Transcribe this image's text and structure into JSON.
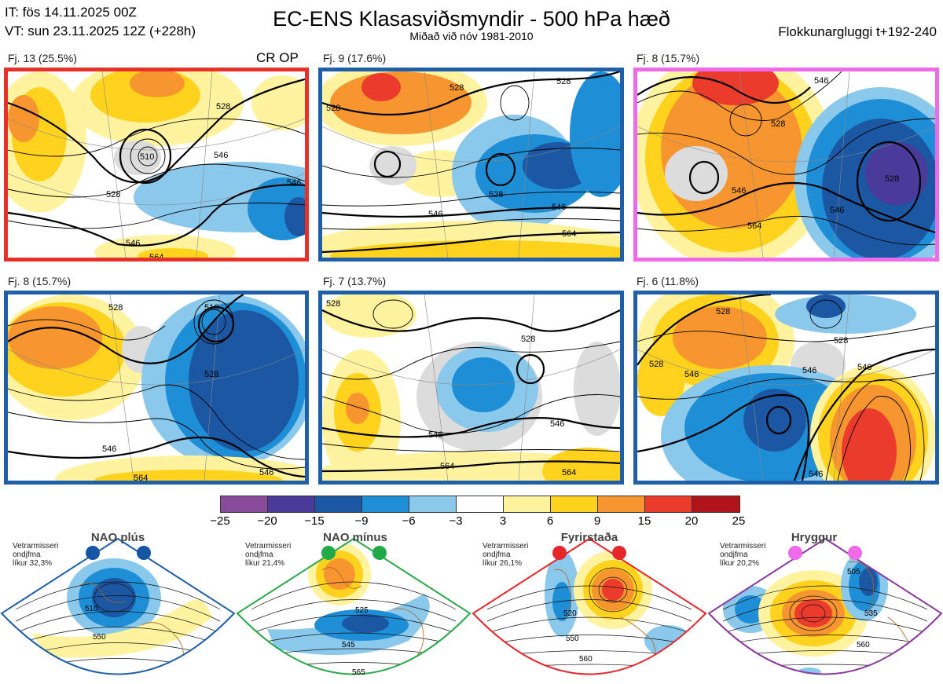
{
  "header": {
    "it_line": "IT: fös 14.11.2025 00Z",
    "vt_line": "VT: sun 23.11.2025 12Z  (+228h)",
    "title": "EC-ENS Klasasviðsmyndir - 500 hPa hæð",
    "subtitle": "Miðað við nóv 1981-2010",
    "window": "Flokkunargluggi t+192-240"
  },
  "panels": [
    {
      "label": "Fj. 13 (25.5%)",
      "tag": "CR OP",
      "border_color": "#e8302a",
      "contours": [
        "510",
        "528",
        "546",
        "528",
        "546",
        "546",
        "564"
      ]
    },
    {
      "label": "Fj. 9 (17.6%)",
      "tag": "",
      "border_color": "#1f5fa8",
      "contours": [
        "528",
        "528",
        "528",
        "528",
        "546",
        "546",
        "564"
      ]
    },
    {
      "label": "Fj. 8 (15.7%)",
      "tag": "",
      "border_color": "#ee6ae8",
      "contours": [
        "528",
        "546",
        "564",
        "528",
        "546",
        "546"
      ]
    },
    {
      "label": "Fj. 8 (15.7%)",
      "tag": "",
      "border_color": "#1f5fa8",
      "contours": [
        "510",
        "528",
        "546",
        "528",
        "564",
        "546"
      ]
    },
    {
      "label": "Fj. 7 (13.7%)",
      "tag": "",
      "border_color": "#1f5fa8",
      "contours": [
        "528",
        "528",
        "546",
        "546",
        "564",
        "564"
      ]
    },
    {
      "label": "Fj. 6 (11.8%)",
      "tag": "",
      "border_color": "#1f5fa8",
      "contours": [
        "528",
        "528",
        "546",
        "546",
        "528",
        "546",
        "546"
      ]
    }
  ],
  "colorbar": {
    "colors": [
      "#8a4a9c",
      "#4a3a9a",
      "#1b57a3",
      "#1e8fd6",
      "#8ac8ec",
      "#ffffff",
      "#fff3a0",
      "#ffd21e",
      "#f7962e",
      "#ea3b2c",
      "#b1131a"
    ],
    "ticks": [
      "−25",
      "−20",
      "−15",
      "−9",
      "−6",
      "−3",
      "3",
      "6",
      "9",
      "15",
      "20",
      "25"
    ]
  },
  "regimes": [
    {
      "name": "NAO plús",
      "note1": "Vetrarmisseri",
      "note2": "ondjfma",
      "note3": "líkur 32,3%",
      "dot_color": "#1455a4",
      "frame_color": "#1f5fa8",
      "contours": [
        "510",
        "550"
      ]
    },
    {
      "name": "NAO mínus",
      "note1": "Vetrarmisseri",
      "note2": "ondjfma",
      "note3": "líkur 21,4%",
      "dot_color": "#22aa4a",
      "frame_color": "#2aa84a",
      "contours": [
        "525",
        "545",
        "565"
      ]
    },
    {
      "name": "Fyrirstaða",
      "note1": "Vetrarmisseri",
      "note2": "ondjfma",
      "note3": "líkur 26,1%",
      "dot_color": "#e6262a",
      "frame_color": "#e6262a",
      "contours": [
        "520",
        "550",
        "560"
      ]
    },
    {
      "name": "Hryggur",
      "note1": "Vetrarmisseri",
      "note2": "ondjfma",
      "note3": "líkur 20,2%",
      "dot_color": "#ee6ae8",
      "frame_color": "#8a3a9c",
      "contours": [
        "505",
        "535",
        "560"
      ]
    }
  ]
}
